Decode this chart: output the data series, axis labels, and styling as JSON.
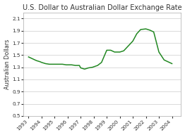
{
  "title": "U.S. Dollar to Australian Dollar Exchange Rate",
  "ylabel": "Australian Dollars",
  "line_color": "#228822",
  "bg_color": "#ffffff",
  "plot_bg_color": "#ffffff",
  "border_color": "#aaaaaa",
  "grid_color": "#cccccc",
  "ylim": [
    0.5,
    2.2
  ],
  "xlim": [
    1992.6,
    2004.7
  ],
  "yticks": [
    0.5,
    0.7,
    0.9,
    1.1,
    1.3,
    1.5,
    1.7,
    1.9,
    2.1
  ],
  "xticks": [
    1993,
    1994,
    1995,
    1996,
    1997,
    1998,
    1999,
    2000,
    2001,
    2002,
    2003,
    2004
  ],
  "title_fontsize": 7.0,
  "label_fontsize": 5.8,
  "tick_fontsize": 5.2,
  "line_width": 1.1,
  "x": [
    1993.0,
    1993.3,
    1993.6,
    1993.9,
    1994.0,
    1994.3,
    1994.6,
    1994.9,
    1995.0,
    1995.3,
    1995.6,
    1995.9,
    1996.0,
    1996.3,
    1996.6,
    1996.9,
    1997.0,
    1997.3,
    1997.6,
    1997.9,
    1998.3,
    1998.6,
    1999.0,
    1999.3,
    1999.6,
    2000.0,
    2000.3,
    2001.0,
    2001.3,
    2001.6,
    2002.0,
    2002.3,
    2002.6,
    2003.0,
    2003.4,
    2004.0
  ],
  "y": [
    1.47,
    1.44,
    1.41,
    1.39,
    1.38,
    1.36,
    1.35,
    1.35,
    1.35,
    1.35,
    1.35,
    1.34,
    1.34,
    1.34,
    1.33,
    1.33,
    1.29,
    1.27,
    1.29,
    1.3,
    1.33,
    1.38,
    1.58,
    1.58,
    1.55,
    1.55,
    1.57,
    1.73,
    1.85,
    1.92,
    1.93,
    1.91,
    1.88,
    1.55,
    1.42,
    1.36
  ]
}
